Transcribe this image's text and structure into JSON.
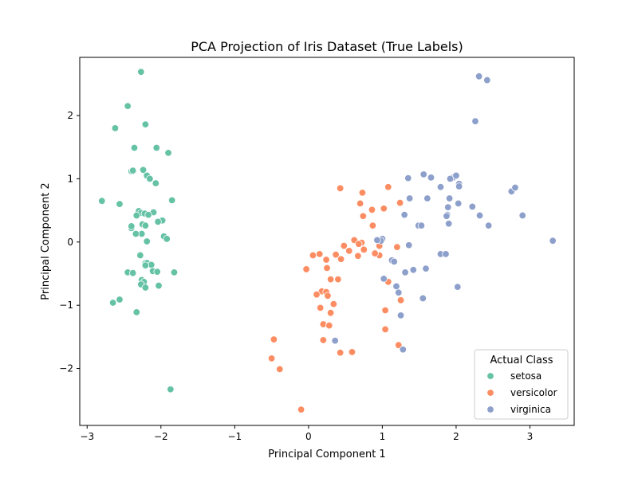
{
  "chart_data": {
    "type": "scatter",
    "title": "PCA Projection of Iris Dataset (True Labels)",
    "xlabel": "Principal Component 1",
    "ylabel": "Principal Component 2",
    "xlim": [
      -3.1,
      3.6
    ],
    "ylim": [
      -2.9,
      2.92
    ],
    "xticks": [
      -3,
      -2,
      -1,
      0,
      1,
      2,
      3
    ],
    "yticks": [
      -2,
      -1,
      0,
      1,
      2
    ],
    "xtick_labels": [
      "−3",
      "−2",
      "−1",
      "0",
      "1",
      "2",
      "3"
    ],
    "ytick_labels": [
      "−2",
      "−1",
      "0",
      "1",
      "2"
    ],
    "grid": false,
    "legend": {
      "title": "Actual Class",
      "placement": "lower-right"
    },
    "series": [
      {
        "name": "setosa",
        "color": "#66c2a5",
        "x": [
          -2.27,
          -2.45,
          -2.62,
          -2.21,
          -2.36,
          -2.06,
          -1.9,
          -2.4,
          -2.38,
          -2.24,
          -2.19,
          -2.15,
          -2.07,
          -1.85,
          -2.8,
          -2.56,
          -2.3,
          -2.1,
          -2.27,
          -2.22,
          -2.17,
          -2.33,
          -1.98,
          -2.04,
          -2.25,
          -2.21,
          -2.4,
          -2.26,
          -2.34,
          -1.96,
          -1.92,
          -2.28,
          -2.21,
          -2.19,
          -2.13,
          -2.21,
          -2.11,
          -2.05,
          -1.82,
          -2.45,
          -2.38,
          -2.26,
          -2.23,
          -2.27,
          -2.03,
          -2.21,
          -2.56,
          -2.65,
          -2.33,
          -2.19,
          -2.4,
          -1.87
        ],
        "y": [
          2.69,
          2.15,
          1.8,
          1.86,
          1.49,
          1.49,
          1.41,
          1.12,
          1.13,
          1.14,
          1.05,
          1.0,
          0.93,
          0.66,
          0.65,
          0.6,
          0.49,
          0.47,
          0.46,
          0.45,
          0.43,
          0.42,
          0.34,
          0.32,
          0.28,
          0.26,
          0.22,
          0.13,
          0.13,
          0.09,
          0.05,
          -0.21,
          -0.33,
          -0.33,
          -0.36,
          -0.37,
          -0.46,
          -0.47,
          -0.48,
          -0.48,
          -0.49,
          -0.6,
          -0.63,
          -0.67,
          -0.69,
          -0.72,
          -0.91,
          -0.96,
          -1.11,
          0.01,
          0.25,
          -2.33
        ]
      },
      {
        "name": "versicolor",
        "color": "#fc8d62",
        "x": [
          0.43,
          0.73,
          1.08,
          0.7,
          1.24,
          0.74,
          0.86,
          1.02,
          0.87,
          0.62,
          0.72,
          0.68,
          0.48,
          0.96,
          0.06,
          0.15,
          0.44,
          0.55,
          0.24,
          0.37,
          0.75,
          0.96,
          1.08,
          1.25,
          -0.03,
          0.25,
          0.4,
          0.3,
          1.04,
          0.18,
          0.24,
          0.11,
          0.26,
          0.34,
          0.3,
          0.2,
          0.2,
          0.28,
          1.22,
          1.04,
          0.16,
          0.43,
          0.59,
          -0.47,
          -0.5,
          -0.39,
          -0.1,
          1.2,
          0.9,
          0.67
        ],
        "y": [
          0.85,
          0.78,
          0.87,
          0.61,
          0.62,
          0.41,
          0.51,
          0.53,
          0.26,
          0.03,
          -0.01,
          -0.03,
          -0.06,
          -0.06,
          -0.21,
          -0.19,
          -0.27,
          -0.14,
          -0.28,
          -0.2,
          -0.12,
          -0.21,
          -0.63,
          -0.92,
          -0.43,
          -0.41,
          -0.59,
          -0.59,
          -1.38,
          -0.78,
          -0.79,
          -0.83,
          -0.85,
          -0.98,
          -1.12,
          -1.3,
          -1.55,
          -1.32,
          -1.63,
          -1.08,
          -1.04,
          -1.75,
          -1.74,
          -1.54,
          -1.84,
          -2.01,
          -2.65,
          -0.08,
          -0.18,
          -0.22
        ]
      },
      {
        "name": "virginica",
        "color": "#8da0cb",
        "x": [
          2.31,
          2.42,
          2.26,
          2.04,
          2.04,
          1.96,
          1.92,
          2.0,
          1.79,
          1.66,
          1.56,
          1.35,
          1.61,
          1.91,
          2.22,
          1.89,
          1.88,
          1.87,
          1.9,
          2.03,
          2.75,
          2.8,
          2.9,
          2.32,
          2.44,
          1.3,
          1.49,
          1.53,
          1.37,
          1.42,
          1.59,
          1.79,
          1.86,
          1.55,
          1.31,
          1.13,
          1.16,
          1.19,
          1.22,
          1.25,
          1.28,
          1.0,
          0.98,
          1.02,
          2.02,
          0.93,
          3.31,
          1.36,
          0.36
        ],
        "y": [
          2.62,
          2.56,
          1.91,
          0.92,
          0.88,
          1.02,
          1.0,
          1.05,
          0.87,
          1.02,
          1.07,
          1.01,
          0.69,
          0.69,
          0.56,
          0.55,
          0.43,
          0.41,
          0.29,
          0.61,
          0.8,
          0.86,
          0.42,
          0.42,
          0.26,
          0.43,
          0.26,
          0.26,
          0.69,
          -0.44,
          -0.42,
          -0.19,
          -0.19,
          -0.89,
          -0.48,
          -0.29,
          -0.31,
          -0.7,
          -0.8,
          -1.16,
          -1.7,
          0.05,
          0.02,
          -0.58,
          -0.71,
          0.03,
          0.02,
          -0.05,
          -1.56
        ]
      }
    ]
  }
}
